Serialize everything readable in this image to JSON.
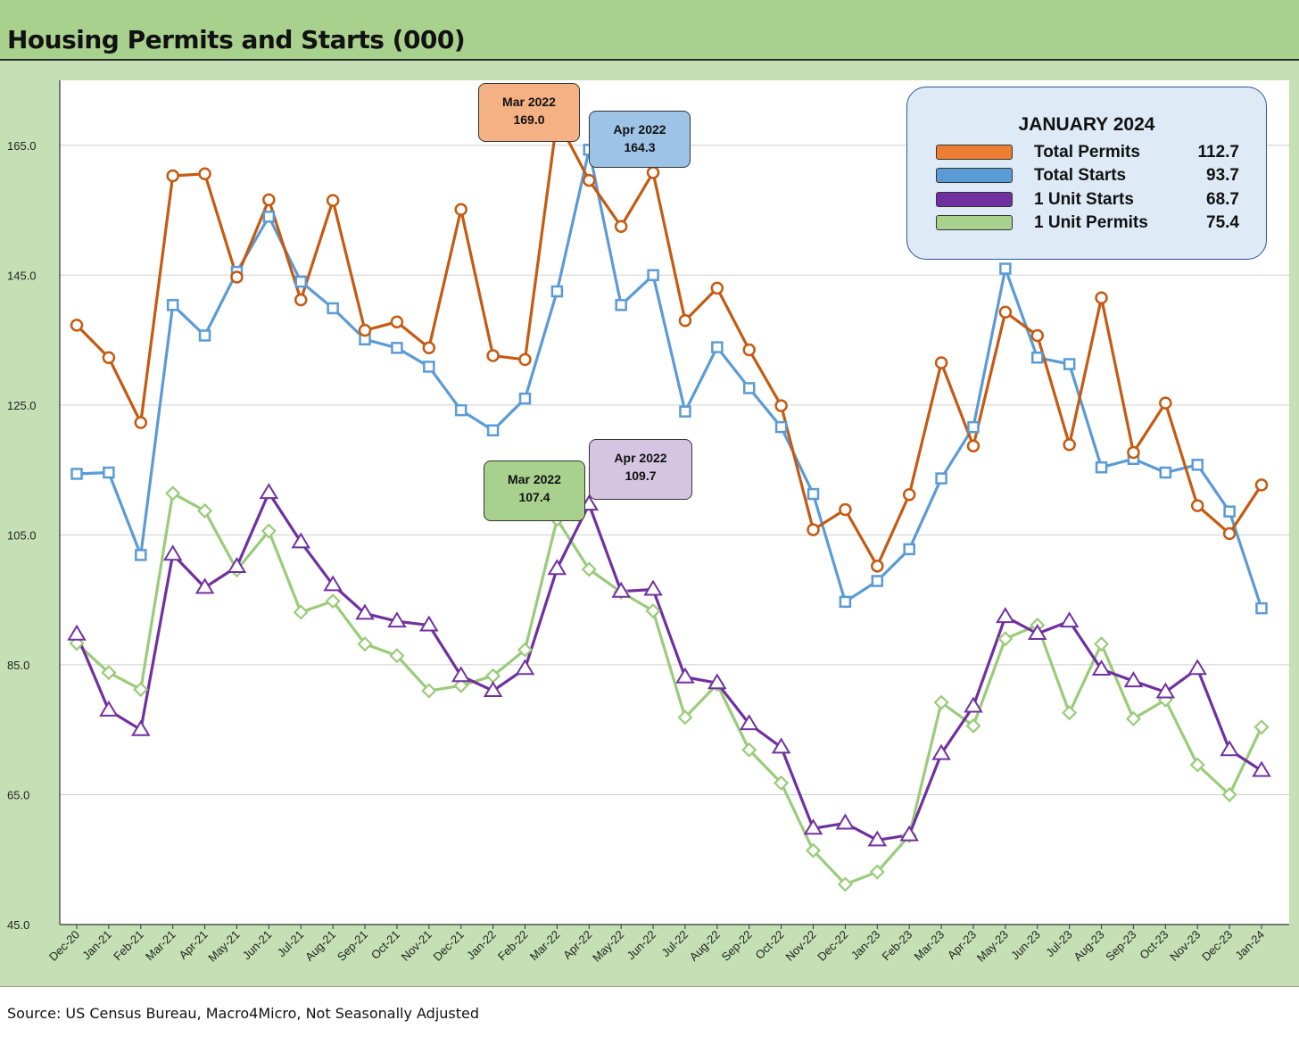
{
  "title": "Housing Permits and Starts (000)",
  "source": "Source: US Census Bureau, Macro4Micro, Not Seasonally Adjusted",
  "legend": {
    "title": "JANUARY 2024",
    "items": [
      {
        "label": "Total Permits",
        "value": "112.7",
        "color": "#ed7d31"
      },
      {
        "label": "Total Starts",
        "value": "93.7",
        "color": "#5b9bd5"
      },
      {
        "label": "1 Unit Starts",
        "value": "68.7",
        "color": "#7030a0"
      },
      {
        "label": "1 Unit Permits",
        "value": "75.4",
        "color": "#a9d18e"
      }
    ]
  },
  "callouts": [
    {
      "line1": "Mar 2022",
      "line2": "169.0",
      "fill": "#f4b183"
    },
    {
      "line1": "Apr 2022",
      "line2": "164.3",
      "fill": "#9dc3e6"
    },
    {
      "line1": "Mar 2022",
      "line2": "107.4",
      "fill": "#a9d18e"
    },
    {
      "line1": "Apr 2022",
      "line2": "109.7",
      "fill": "#d5c5e3"
    }
  ],
  "chart_data": {
    "type": "line",
    "x": [
      "Dec-20",
      "Jan-21",
      "Feb-21",
      "Mar-21",
      "Apr-21",
      "May-21",
      "Jun-21",
      "Jul-21",
      "Aug-21",
      "Sep-21",
      "Oct-21",
      "Nov-21",
      "Dec-21",
      "Jan-22",
      "Feb-22",
      "Mar-22",
      "Apr-22",
      "May-22",
      "Jun-22",
      "Jul-22",
      "Aug-22",
      "Sep-22",
      "Oct-22",
      "Nov-22",
      "Dec-22",
      "Jan-23",
      "Feb-23",
      "Mar-23",
      "Apr-23",
      "May-23",
      "Jun-23",
      "Jul-23",
      "Aug-23",
      "Sep-23",
      "Oct-23",
      "Nov-23",
      "Dec-23",
      "Jan-24"
    ],
    "ylim": [
      45,
      175
    ],
    "yticks": [
      45,
      65,
      85,
      105,
      125,
      145,
      165
    ],
    "ytick_labels": [
      "45.0",
      "65.0",
      "85.0",
      "105.0",
      "125.0",
      "145.0",
      "165.0"
    ],
    "grid": true,
    "legend_position": "top-right",
    "series": [
      {
        "name": "Total Permits",
        "color": "#c55a11",
        "marker": "circle",
        "values": [
          137.3,
          132.3,
          122.3,
          160.3,
          160.6,
          144.7,
          156.6,
          141.2,
          156.5,
          136.5,
          137.8,
          133.8,
          155.1,
          132.6,
          132.0,
          169.0,
          159.6,
          152.5,
          160.8,
          138.0,
          143.0,
          133.5,
          124.9,
          105.8,
          108.9,
          100.2,
          111.2,
          131.5,
          118.7,
          139.3,
          135.7,
          118.9,
          141.5,
          117.7,
          125.3,
          109.5,
          105.2,
          112.7
        ]
      },
      {
        "name": "Total Starts",
        "color": "#5b9bd5",
        "marker": "square",
        "values": [
          114.4,
          114.6,
          101.9,
          140.4,
          135.7,
          145.5,
          154.0,
          144.0,
          139.9,
          135.1,
          133.8,
          130.9,
          124.2,
          121.1,
          126.0,
          142.5,
          164.3,
          140.4,
          145.0,
          124.0,
          133.9,
          127.6,
          121.6,
          111.3,
          94.7,
          97.9,
          102.8,
          113.7,
          121.6,
          146.0,
          132.3,
          131.3,
          115.4,
          116.7,
          114.6,
          115.8,
          108.6,
          93.7
        ]
      },
      {
        "name": "1 Unit Starts",
        "color": "#7030a0",
        "marker": "triangle",
        "values": [
          89.7,
          78.0,
          75.0,
          102.0,
          96.9,
          100.1,
          111.5,
          103.9,
          97.3,
          92.9,
          91.7,
          91.1,
          83.3,
          81.0,
          84.4,
          99.8,
          109.7,
          96.3,
          96.6,
          83.1,
          82.2,
          75.9,
          72.3,
          59.8,
          60.6,
          58.0,
          58.8,
          71.3,
          78.6,
          92.4,
          89.8,
          91.7,
          84.3,
          82.5,
          80.8,
          84.4,
          71.9,
          68.7
        ]
      },
      {
        "name": "1 Unit Permits",
        "color": "#9acb7a",
        "marker": "diamond",
        "values": [
          88.3,
          83.8,
          81.2,
          111.4,
          108.7,
          99.6,
          105.6,
          93.1,
          94.8,
          88.2,
          86.4,
          81.0,
          81.8,
          83.3,
          87.3,
          107.4,
          99.7,
          96.2,
          93.3,
          76.9,
          82.0,
          71.9,
          66.8,
          56.4,
          51.2,
          53.1,
          58.7,
          79.2,
          75.6,
          89.0,
          91.1,
          77.6,
          88.2,
          76.7,
          79.6,
          69.6,
          65.0,
          75.4
        ]
      }
    ]
  }
}
